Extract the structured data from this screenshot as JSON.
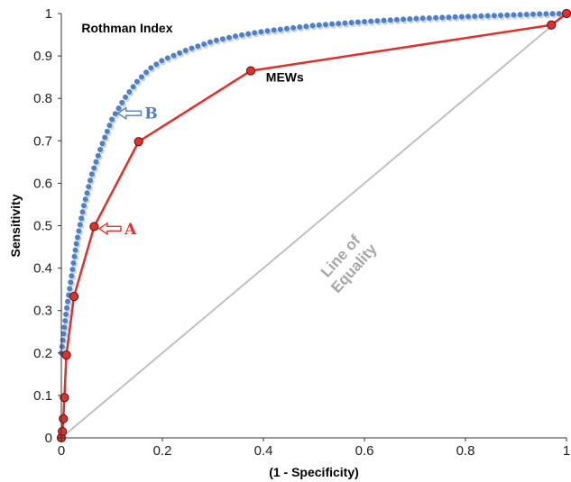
{
  "chart_data": {
    "type": "line",
    "title": "",
    "xlabel": "(1 - Specificity)",
    "ylabel": "Sensitivity",
    "xlim": [
      0,
      1
    ],
    "ylim": [
      0,
      1
    ],
    "x_ticks": [
      "0",
      "0.2",
      "0.4",
      "0.6",
      "0.8",
      "1"
    ],
    "y_ticks": [
      "0",
      "0.1",
      "0.2",
      "0.3",
      "0.4",
      "0.5",
      "0.6",
      "0.7",
      "0.8",
      "0.9",
      "1"
    ],
    "grid": false,
    "legend": "none",
    "series": [
      {
        "name": "Rothman Index",
        "style": "dotted",
        "color": "#4f7fc4",
        "x": [
          0,
          0.005,
          0.01,
          0.02,
          0.03,
          0.045,
          0.06,
          0.08,
          0.1,
          0.125,
          0.15,
          0.175,
          0.2,
          0.25,
          0.3,
          0.35,
          0.4,
          0.5,
          0.6,
          0.7,
          0.8,
          0.9,
          0.95,
          1
        ],
        "y": [
          0.2,
          0.25,
          0.3,
          0.38,
          0.46,
          0.55,
          0.62,
          0.69,
          0.75,
          0.8,
          0.84,
          0.87,
          0.89,
          0.915,
          0.935,
          0.948,
          0.958,
          0.972,
          0.981,
          0.988,
          0.993,
          0.997,
          0.999,
          1
        ]
      },
      {
        "name": "MEWs",
        "style": "solid-markers",
        "color": "#e0302b",
        "x": [
          0,
          0.002,
          0.004,
          0.006,
          0.01,
          0.025,
          0.065,
          0.153,
          0.375,
          0.97,
          1
        ],
        "y": [
          0,
          0.015,
          0.045,
          0.095,
          0.195,
          0.333,
          0.498,
          0.698,
          0.865,
          0.973,
          1
        ]
      },
      {
        "name": "Line of Equality",
        "style": "reference",
        "color": "#c0c0c0",
        "x": [
          0,
          1
        ],
        "y": [
          0,
          1
        ]
      }
    ],
    "annotations": [
      {
        "text": "Rothman Index",
        "x": 0.04,
        "y": 0.955
      },
      {
        "text": "MEWs",
        "x": 0.405,
        "y": 0.84
      },
      {
        "text": "Line of\nEquality",
        "x": 0.56,
        "y": 0.42,
        "rotate": -48
      },
      {
        "text": "B",
        "x": 0.165,
        "y": 0.765,
        "arrow_to_x": 0.112,
        "arrow_to_y": 0.765,
        "color": "#4f7fc4"
      },
      {
        "text": "A",
        "x": 0.125,
        "y": 0.493,
        "arrow_to_x": 0.075,
        "arrow_to_y": 0.493,
        "color": "#e0302b"
      }
    ]
  }
}
